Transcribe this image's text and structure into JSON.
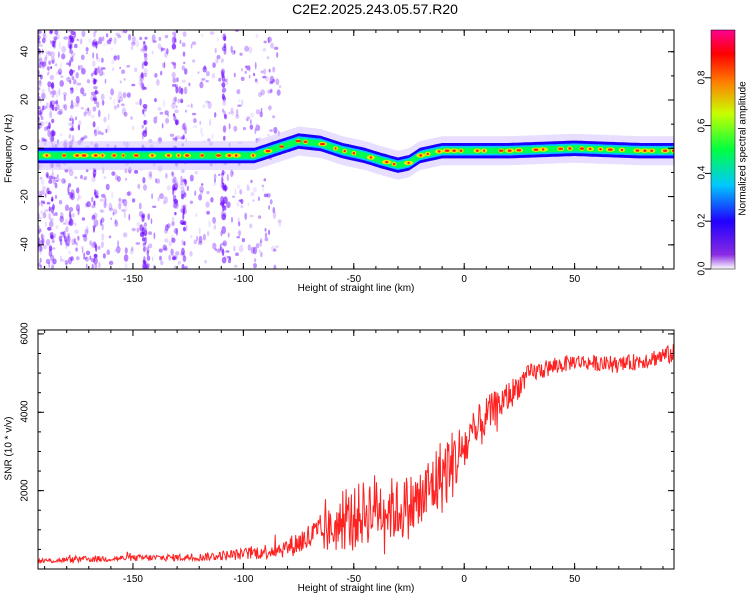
{
  "title": "C2E2.2025.243.05.57.R20",
  "colors": {
    "band_colors": [
      "#1a00ff",
      "#00c8ff",
      "#00ff50",
      "#f0e600",
      "#ff2000"
    ],
    "scatter": "#6a00ff",
    "snr_line": "#ff2020"
  },
  "chart_data": [
    {
      "type": "heatmap",
      "title": "C2E2.2025.243.05.57.R20",
      "xlabel": "Height of straight line (km)",
      "ylabel": "Frequency (Hz)",
      "xlim": [
        -193,
        95
      ],
      "ylim": [
        -50,
        49
      ],
      "xticks": [
        -150,
        -100,
        -50,
        0,
        50
      ],
      "xtick_labels": [
        "-150",
        "-100",
        "-50",
        "0",
        "50"
      ],
      "yticks": [
        -40,
        -20,
        0,
        20,
        40
      ],
      "ytick_labels": [
        "-40",
        "-20",
        "0",
        "20",
        "40"
      ],
      "ridge": {
        "x": [
          -193,
          -170,
          -140,
          -110,
          -95,
          -85,
          -75,
          -65,
          -55,
          -45,
          -38,
          -30,
          -25,
          -20,
          -15,
          -10,
          0,
          20,
          50,
          80,
          95
        ],
        "y": [
          -3,
          -3,
          -3,
          -3,
          -3,
          0,
          3,
          2,
          -1,
          -3,
          -5,
          -7,
          -6,
          -3,
          -2,
          -1,
          -1,
          -1,
          0,
          -1,
          -1
        ]
      },
      "colorbar": {
        "label": "Normalized spectral amplitude",
        "range": [
          0.0,
          1.0
        ],
        "ticks": [
          0.0,
          0.2,
          0.4,
          0.6,
          0.8
        ],
        "tick_labels": [
          "0.0",
          "0.2",
          "0.4",
          "0.6",
          "0.8"
        ]
      }
    },
    {
      "type": "line",
      "xlabel": "Height of straight line (km)",
      "ylabel": "SNR (10 * v/v)",
      "xlim": [
        -193,
        95
      ],
      "ylim": [
        0,
        6100
      ],
      "xticks": [
        -150,
        -100,
        -50,
        0,
        50
      ],
      "xtick_labels": [
        "-150",
        "-100",
        "-50",
        "0",
        "50"
      ],
      "yticks": [
        2000,
        4000,
        6000
      ],
      "ytick_labels": [
        "2000",
        "4000",
        "6000"
      ],
      "envelope": {
        "x": [
          -193,
          -170,
          -150,
          -120,
          -100,
          -90,
          -80,
          -70,
          -60,
          -50,
          -40,
          -30,
          -20,
          -15,
          -10,
          -5,
          0,
          5,
          10,
          20,
          30,
          50,
          70,
          95
        ],
        "y": [
          200,
          250,
          280,
          300,
          380,
          450,
          550,
          800,
          1000,
          1300,
          1600,
          1500,
          1700,
          2100,
          2400,
          2700,
          3100,
          3400,
          3900,
          4400,
          5000,
          5300,
          5200,
          5500
        ],
        "noise": [
          60,
          80,
          80,
          100,
          150,
          200,
          250,
          400,
          600,
          800,
          900,
          800,
          900,
          900,
          1000,
          900,
          700,
          700,
          500,
          400,
          250,
          200,
          200,
          250
        ]
      }
    }
  ]
}
